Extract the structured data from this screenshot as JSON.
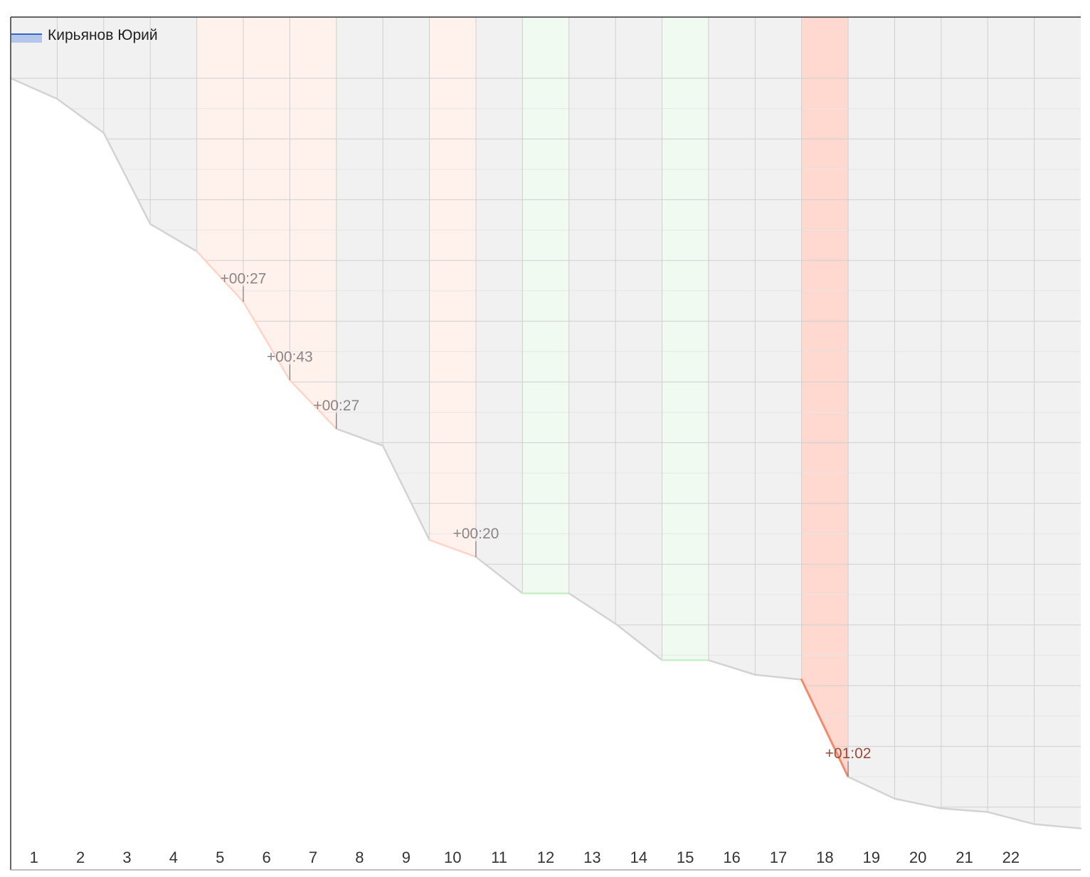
{
  "chart_data": {
    "type": "area",
    "title": "",
    "xlabel": "",
    "ylabel": "",
    "legend": {
      "position": "top-left",
      "label": "Кирьянов Юрий",
      "color": "#3366cc"
    },
    "x": [
      0,
      1,
      2,
      3,
      4,
      5,
      6,
      7,
      8,
      9,
      10,
      11,
      12,
      13,
      14,
      15,
      16,
      17,
      18,
      19,
      20,
      21,
      22,
      23
    ],
    "tick_labels": [
      "1",
      "2",
      "3",
      "4",
      "5",
      "6",
      "7",
      "8",
      "9",
      "10",
      "11",
      "12",
      "13",
      "14",
      "15",
      "16",
      "17",
      "18",
      "19",
      "20",
      "21",
      "22"
    ],
    "values": [
      0,
      0.34,
      0.9,
      2.4,
      2.85,
      3.68,
      4.97,
      5.77,
      6.05,
      7.6,
      7.88,
      8.48,
      8.48,
      8.98,
      9.58,
      9.58,
      9.82,
      9.9,
      11.5,
      11.86,
      12.02,
      12.08,
      12.28,
      12.35
    ],
    "xlim": [
      0,
      23
    ],
    "ylim": [
      0,
      12.5
    ],
    "grid": true,
    "intervals": [
      {
        "from": 4,
        "to": 7,
        "status": "loss"
      },
      {
        "from": 9,
        "to": 10,
        "status": "loss"
      },
      {
        "from": 11,
        "to": 12,
        "status": "gain"
      },
      {
        "from": 14,
        "to": 15,
        "status": "gain"
      },
      {
        "from": 17,
        "to": 18,
        "status": "major-loss"
      }
    ],
    "annotations": [
      {
        "x": 5,
        "text": "+00:27",
        "status": "loss"
      },
      {
        "x": 6,
        "text": "+00:43",
        "status": "loss"
      },
      {
        "x": 7,
        "text": "+00:27",
        "status": "loss"
      },
      {
        "x": 10,
        "text": "+00:20",
        "status": "loss"
      },
      {
        "x": 18,
        "text": "+01:02",
        "status": "major-loss"
      }
    ],
    "colors": {
      "area_fill": "#f1f1f1",
      "line": "#d3d3d3",
      "loss_band": "#fff1ec",
      "loss_line": "#ffd4c7",
      "gain_band": "#f1faf1",
      "gain_line": "#c9efc9",
      "major_band": "#ffd8cf",
      "major_line": "#f28a6c",
      "grid_major": "#cfcfcf",
      "grid_minor": "#e6e6e6"
    }
  }
}
